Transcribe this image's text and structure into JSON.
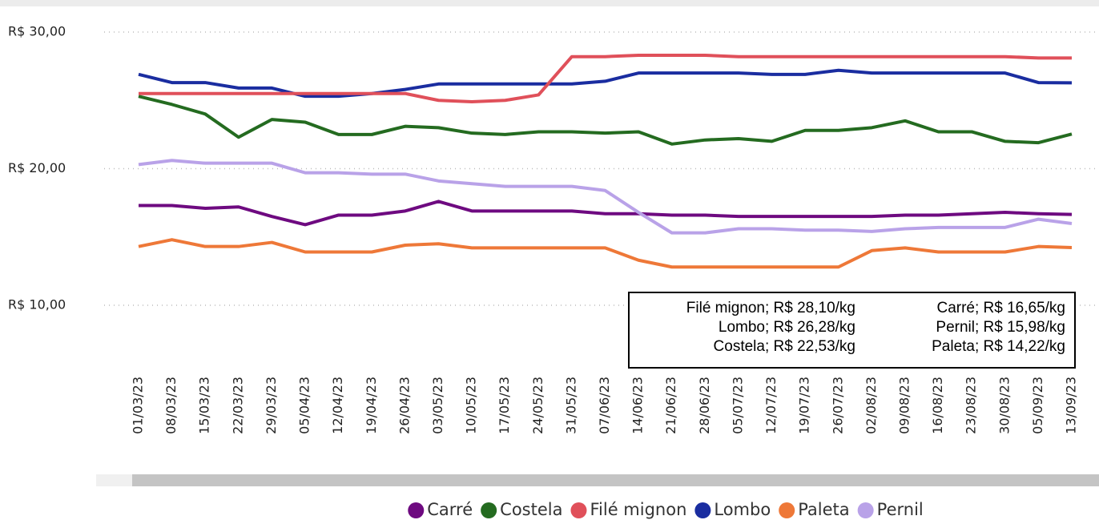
{
  "chart_data": {
    "type": "line",
    "categories": [
      "01/03/23",
      "08/03/23",
      "15/03/23",
      "22/03/23",
      "29/03/23",
      "05/04/23",
      "12/04/23",
      "19/04/23",
      "26/04/23",
      "03/05/23",
      "10/05/23",
      "17/05/23",
      "24/05/23",
      "31/05/23",
      "07/06/23",
      "14/06/23",
      "21/06/23",
      "28/06/23",
      "05/07/23",
      "12/07/23",
      "19/07/23",
      "26/07/23",
      "02/08/23",
      "09/08/23",
      "16/08/23",
      "23/08/23",
      "30/08/23",
      "05/09/23",
      "13/09/23"
    ],
    "series": [
      {
        "name": "Carré",
        "color": "#6e0a80",
        "values": [
          17.3,
          17.3,
          17.1,
          17.2,
          16.5,
          15.9,
          16.6,
          16.6,
          16.9,
          17.6,
          16.9,
          16.9,
          16.9,
          16.9,
          16.7,
          16.7,
          16.6,
          16.6,
          16.5,
          16.5,
          16.5,
          16.5,
          16.5,
          16.6,
          16.6,
          16.7,
          16.8,
          16.7,
          16.65
        ]
      },
      {
        "name": "Costela",
        "color": "#246b20",
        "values": [
          25.3,
          24.7,
          24.0,
          22.3,
          23.6,
          23.4,
          22.5,
          22.5,
          23.1,
          23.0,
          22.6,
          22.5,
          22.7,
          22.7,
          22.6,
          22.7,
          21.8,
          22.1,
          22.2,
          22.0,
          22.8,
          22.8,
          23.0,
          23.5,
          22.7,
          22.7,
          22.0,
          21.9,
          22.53
        ]
      },
      {
        "name": "Filé mignon",
        "color": "#e0505a",
        "values": [
          25.5,
          25.5,
          25.5,
          25.5,
          25.5,
          25.5,
          25.5,
          25.5,
          25.5,
          25.0,
          24.9,
          25.0,
          25.4,
          28.2,
          28.2,
          28.3,
          28.3,
          28.3,
          28.2,
          28.2,
          28.2,
          28.2,
          28.2,
          28.2,
          28.2,
          28.2,
          28.2,
          28.1,
          28.1
        ]
      },
      {
        "name": "Lombo",
        "color": "#1a2da0",
        "values": [
          26.9,
          26.3,
          26.3,
          25.9,
          25.9,
          25.3,
          25.3,
          25.5,
          25.8,
          26.2,
          26.2,
          26.2,
          26.2,
          26.2,
          26.4,
          27.0,
          27.0,
          27.0,
          27.0,
          26.9,
          26.9,
          27.2,
          27.0,
          27.0,
          27.0,
          27.0,
          27.0,
          26.3,
          26.28
        ]
      },
      {
        "name": "Paleta",
        "color": "#ee7838",
        "values": [
          14.3,
          14.8,
          14.3,
          14.3,
          14.6,
          13.9,
          13.9,
          13.9,
          14.4,
          14.5,
          14.2,
          14.2,
          14.2,
          14.2,
          14.2,
          13.3,
          12.8,
          12.8,
          12.8,
          12.8,
          12.8,
          12.8,
          14.0,
          14.2,
          13.9,
          13.9,
          13.9,
          14.3,
          14.22
        ]
      },
      {
        "name": "Pernil",
        "color": "#b9a2e8",
        "values": [
          20.3,
          20.6,
          20.4,
          20.4,
          20.4,
          19.7,
          19.7,
          19.6,
          19.6,
          19.1,
          18.9,
          18.7,
          18.7,
          18.7,
          18.4,
          16.8,
          15.3,
          15.3,
          15.6,
          15.6,
          15.5,
          15.5,
          15.4,
          15.6,
          15.7,
          15.7,
          15.7,
          16.3,
          15.98
        ]
      }
    ],
    "ylim": [
      10,
      30
    ],
    "yticks": [
      {
        "value": 10,
        "label": "R$ 10,00"
      },
      {
        "value": 20,
        "label": "R$ 20,00"
      },
      {
        "value": 30,
        "label": "R$ 30,00"
      }
    ],
    "grid": true,
    "annotations": [
      "Filé mignon; R$ 28,10/kg",
      "Lombo; R$ 26,28/kg",
      "Costela; R$ 22,53/kg",
      "Carré; R$ 16,65/kg",
      "Pernil; R$ 15,98/kg",
      "Paleta; R$ 14,22/kg"
    ],
    "legend": "bottom"
  }
}
